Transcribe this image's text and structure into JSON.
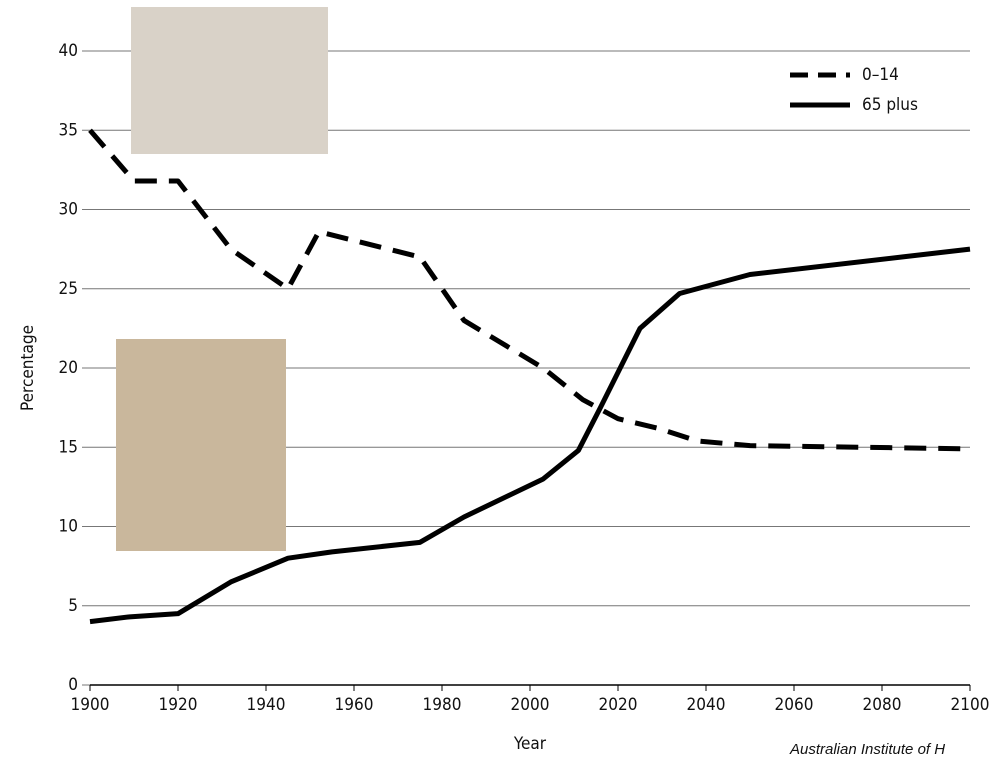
{
  "chart_data": {
    "type": "line",
    "x_label": "Year",
    "y_label": "Percentage",
    "source": "Australian Institute of H",
    "xlim": [
      1900,
      2100
    ],
    "xticks": [
      1900,
      1920,
      1940,
      1960,
      1980,
      2000,
      2020,
      2040,
      2060,
      2080,
      2100
    ],
    "ylim": [
      0,
      40
    ],
    "yticks": [
      0,
      5,
      10,
      15,
      20,
      25,
      30,
      35,
      40
    ],
    "grid": true,
    "series": [
      {
        "name": "0–14",
        "color": "#000000",
        "dash": true,
        "x": [
          1900,
          1910,
          1920,
          1932,
          1945,
          1952,
          1975,
          1985,
          2003,
          2012,
          2020,
          2029,
          2038,
          2050,
          2100
        ],
        "values": [
          35,
          31.8,
          31.8,
          27.5,
          25,
          28.6,
          27,
          23,
          20,
          18,
          16.8,
          16.2,
          15.4,
          15.1,
          14.9
        ]
      },
      {
        "name": "65 plus",
        "color": "#000000",
        "dash": false,
        "x": [
          1900,
          1909,
          1920,
          1932,
          1945,
          1955,
          1975,
          1985,
          2003,
          2011,
          2016,
          2025,
          2034,
          2050,
          2100
        ],
        "values": [
          4,
          4.3,
          4.5,
          6.5,
          8,
          8.4,
          9,
          10.6,
          13,
          14.8,
          17.5,
          22.5,
          24.7,
          25.9,
          27.5
        ]
      }
    ]
  }
}
